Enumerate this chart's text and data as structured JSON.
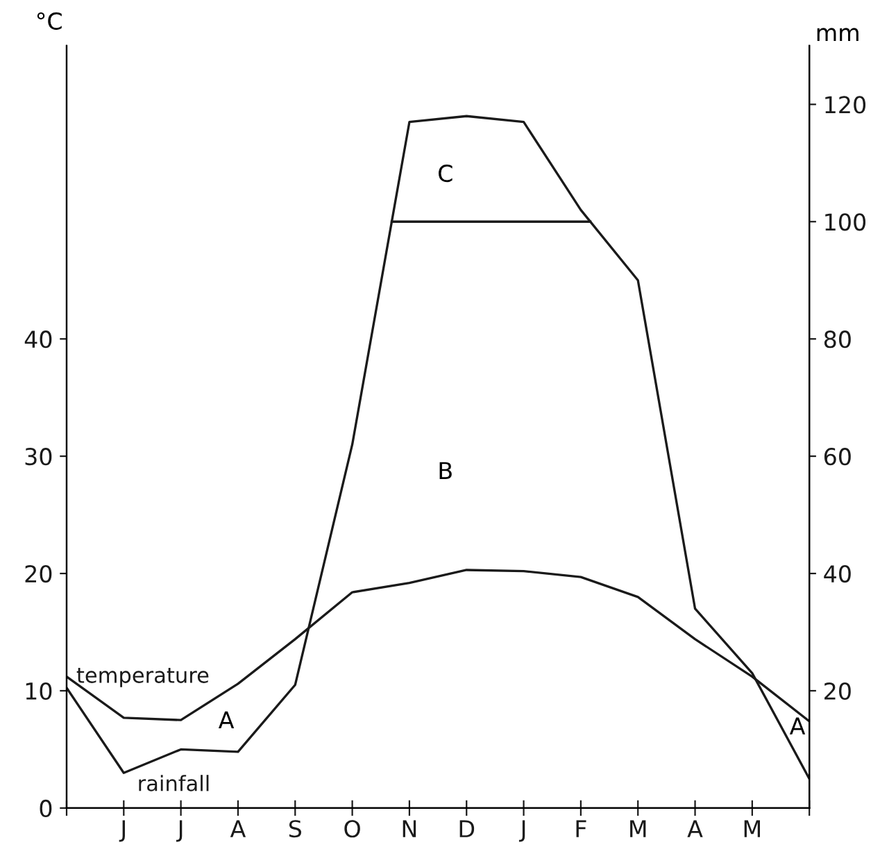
{
  "chart_data": {
    "type": "line",
    "ylabel": "°C",
    "y2label": "mm",
    "categories": [
      null,
      "J",
      "J",
      "A",
      "S",
      "O",
      "N",
      "D",
      "J",
      "F",
      "M",
      "A",
      "M",
      null
    ],
    "series": [
      {
        "name": "temperature",
        "color": "#1a1a1a",
        "values": [
          11.2,
          7.7,
          7.5,
          10.6,
          14.4,
          18.4,
          19.2,
          20.3,
          20.2,
          19.7,
          18.0,
          14.4,
          11.2,
          7.4
        ]
      },
      {
        "name": "rainfall",
        "color": "#1a1a1a",
        "axis": "y2",
        "values": [
          20.5,
          6,
          10,
          9.6,
          21,
          62,
          117,
          118,
          117,
          102,
          90,
          34,
          23,
          5
        ]
      }
    ],
    "ylim": [
      0,
      65
    ],
    "yticks": [
      0,
      10,
      20,
      30,
      40
    ],
    "y2lim": [
      0,
      130
    ],
    "y2ticks": [
      20,
      40,
      60,
      80,
      100,
      120
    ],
    "ref_lines": [
      {
        "axis": "y2",
        "value": 100,
        "color": "#1a1a1a"
      }
    ],
    "annotations": [
      "A",
      "B",
      "C",
      "A"
    ],
    "grid": false,
    "legend": false,
    "marker": "none",
    "line_style": "solid"
  }
}
